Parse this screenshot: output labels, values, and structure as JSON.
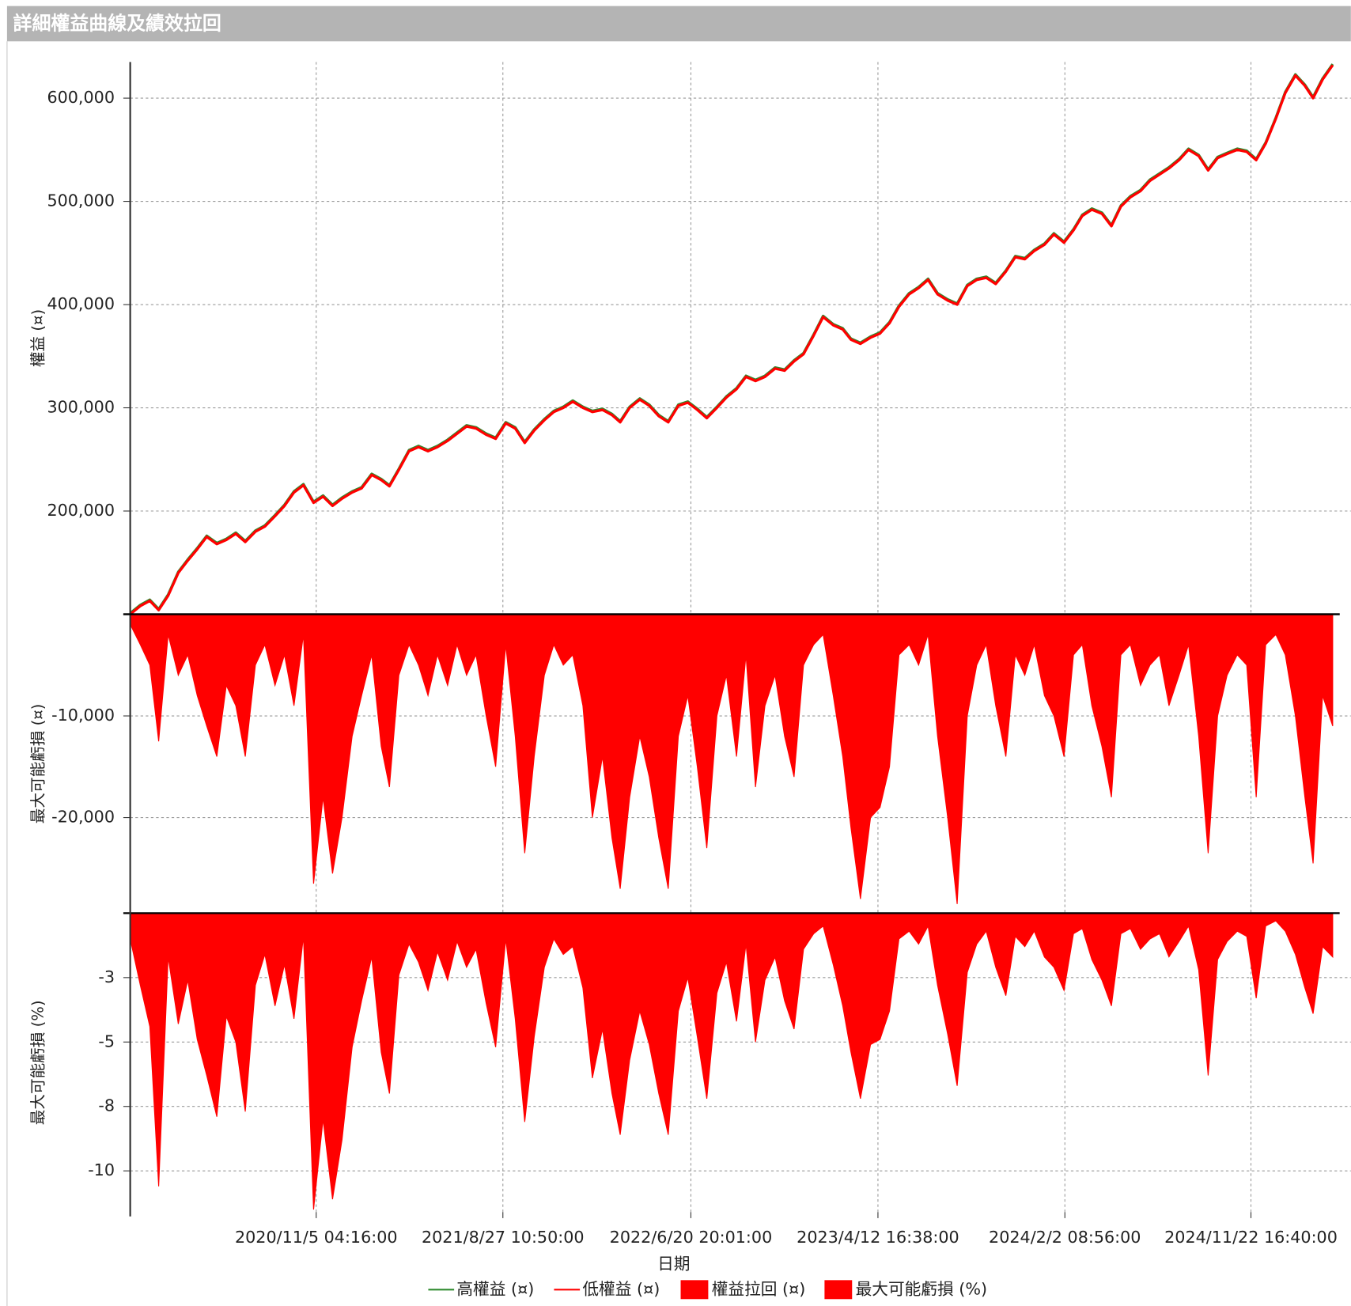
{
  "chart_data": {
    "type": "panels",
    "title": "詳細權益曲線及績效拉回",
    "xlabel": "日期",
    "xlim": [
      "2020/1/16",
      "2025/4/12"
    ],
    "xticks": [
      "2020/11/5 04:16:00",
      "2021/8/27 10:50:00",
      "2022/6/20 20:01:00",
      "2023/4/12 16:38:00",
      "2024/2/2 08:56:00",
      "2024/11/22 16:40:00"
    ],
    "x": [
      "2020/1/16",
      "2020/2/1",
      "2020/2/16",
      "2020/3/1",
      "2020/3/16",
      "2020/4/1",
      "2020/4/16",
      "2020/5/1",
      "2020/5/16",
      "2020/6/1",
      "2020/6/16",
      "2020/7/1",
      "2020/7/16",
      "2020/8/1",
      "2020/8/16",
      "2020/9/1",
      "2020/9/16",
      "2020/10/1",
      "2020/10/16",
      "2020/11/1",
      "2020/11/16",
      "2020/12/1",
      "2020/12/16",
      "2021/1/1",
      "2021/1/16",
      "2021/2/1",
      "2021/2/16",
      "2021/3/1",
      "2021/3/16",
      "2021/4/1",
      "2021/4/16",
      "2021/5/1",
      "2021/5/16",
      "2021/6/1",
      "2021/6/16",
      "2021/7/1",
      "2021/7/16",
      "2021/8/1",
      "2021/8/16",
      "2021/9/1",
      "2021/9/16",
      "2021/10/1",
      "2021/10/16",
      "2021/11/1",
      "2021/11/16",
      "2021/12/1",
      "2021/12/16",
      "2022/1/1",
      "2022/1/16",
      "2022/2/1",
      "2022/2/16",
      "2022/3/1",
      "2022/3/16",
      "2022/4/1",
      "2022/4/16",
      "2022/5/1",
      "2022/5/16",
      "2022/6/1",
      "2022/6/16",
      "2022/7/1",
      "2022/7/16",
      "2022/8/1",
      "2022/8/16",
      "2022/9/1",
      "2022/9/16",
      "2022/10/1",
      "2022/10/16",
      "2022/11/1",
      "2022/11/16",
      "2022/12/1",
      "2022/12/16",
      "2023/1/1",
      "2023/1/16",
      "2023/2/1",
      "2023/2/16",
      "2023/3/1",
      "2023/3/16",
      "2023/4/1",
      "2023/4/16",
      "2023/5/1",
      "2023/5/16",
      "2023/6/1",
      "2023/6/16",
      "2023/7/1",
      "2023/7/16",
      "2023/8/1",
      "2023/8/16",
      "2023/9/1",
      "2023/9/16",
      "2023/10/1",
      "2023/10/16",
      "2023/11/1",
      "2023/11/16",
      "2023/12/1",
      "2023/12/16",
      "2024/1/1",
      "2024/1/16",
      "2024/2/1",
      "2024/2/16",
      "2024/3/1",
      "2024/3/16",
      "2024/4/1",
      "2024/4/16",
      "2024/5/1",
      "2024/5/16",
      "2024/6/1",
      "2024/6/16",
      "2024/7/1",
      "2024/7/16",
      "2024/8/1",
      "2024/8/16",
      "2024/9/1",
      "2024/9/16",
      "2024/10/1",
      "2024/10/16",
      "2024/11/1",
      "2024/11/16",
      "2024/12/1",
      "2024/12/16",
      "2025/1/1",
      "2025/1/16",
      "2025/2/1",
      "2025/2/16",
      "2025/3/1",
      "2025/3/16",
      "2025/4/1"
    ],
    "panels": [
      {
        "type": "line",
        "ylabel": "權益 (¤)",
        "ylim": [
          100000,
          635000
        ],
        "yticks": [
          {
            "value": 200000,
            "label": "200,000"
          },
          {
            "value": 300000,
            "label": "300,000"
          },
          {
            "value": 400000,
            "label": "400,000"
          },
          {
            "value": 500000,
            "label": "500,000"
          },
          {
            "value": 600000,
            "label": "600,000"
          }
        ],
        "series": [
          {
            "name": "高權益 (¤)",
            "color": "#2e8b2e",
            "values": [
              101000,
              109000,
              114000,
              105000,
              119000,
              141000,
              153000,
              164000,
              176000,
              169000,
              173000,
              179000,
              171000,
              181000,
              186000,
              196000,
              206000,
              219000,
              226000,
              209000,
              215000,
              206000,
              213000,
              219000,
              223000,
              236000,
              231000,
              225000,
              241000,
              259000,
              263000,
              259000,
              263000,
              269000,
              276000,
              283000,
              281000,
              275000,
              271000,
              286000,
              281000,
              267000,
              279000,
              289000,
              297000,
              301000,
              307000,
              301000,
              297000,
              299000,
              294000,
              287000,
              301000,
              309000,
              303000,
              293000,
              287000,
              303000,
              306000,
              299000,
              291000,
              301000,
              311000,
              319000,
              331000,
              327000,
              331000,
              339000,
              337000,
              346000,
              353000,
              371000,
              389000,
              381000,
              377000,
              367000,
              363000,
              369000,
              373000,
              383000,
              399000,
              411000,
              417000,
              425000,
              411000,
              405000,
              401000,
              419000,
              425000,
              427000,
              421000,
              433000,
              447000,
              445000,
              453000,
              459000,
              469000,
              461000,
              473000,
              487000,
              493000,
              489000,
              477000,
              496000,
              505000,
              511000,
              521000,
              527000,
              533000,
              541000,
              551000,
              545000,
              531000,
              543000,
              547000,
              551000,
              549000,
              541000,
              557000,
              581000,
              606000,
              623000,
              613000,
              601000,
              619000,
              633000
            ]
          },
          {
            "name": "低權益 (¤)",
            "color": "#ff0000",
            "values": [
              100000,
              108000,
              113000,
              104000,
              118000,
              140000,
              152000,
              163000,
              175000,
              168000,
              172000,
              178000,
              170000,
              180000,
              185000,
              195000,
              205000,
              218000,
              225000,
              208000,
              214000,
              205000,
              212000,
              218000,
              222000,
              235000,
              230000,
              224000,
              240000,
              258000,
              262000,
              258000,
              262000,
              268000,
              275000,
              282000,
              280000,
              274000,
              270000,
              285000,
              280000,
              266000,
              278000,
              288000,
              296000,
              300000,
              306000,
              300000,
              296000,
              298000,
              293000,
              286000,
              300000,
              308000,
              302000,
              292000,
              286000,
              302000,
              305000,
              298000,
              290000,
              300000,
              310000,
              318000,
              330000,
              326000,
              330000,
              338000,
              336000,
              345000,
              352000,
              370000,
              388000,
              380000,
              376000,
              366000,
              362000,
              368000,
              372000,
              382000,
              398000,
              410000,
              416000,
              424000,
              410000,
              404000,
              400000,
              418000,
              424000,
              426000,
              420000,
              432000,
              446000,
              444000,
              452000,
              458000,
              468000,
              460000,
              472000,
              486000,
              492000,
              488000,
              476000,
              495000,
              504000,
              510000,
              520000,
              526000,
              532000,
              540000,
              550000,
              544000,
              530000,
              542000,
              546000,
              550000,
              548000,
              540000,
              556000,
              580000,
              605000,
              622000,
              612000,
              600000,
              618000,
              632000
            ]
          }
        ]
      },
      {
        "type": "area",
        "ylabel": "最大可能虧損 (¤)",
        "ylim": [
          -29400,
          0
        ],
        "yticks": [
          {
            "value": -10000,
            "label": "-10,000"
          },
          {
            "value": -20000,
            "label": "-20,000"
          }
        ],
        "series": [
          {
            "name": "權益拉回 (¤)",
            "color": "#ff0000",
            "values": [
              -1000,
              -3000,
              -5000,
              -12500,
              -2000,
              -6000,
              -4000,
              -8000,
              -11000,
              -14000,
              -7000,
              -9000,
              -14000,
              -5000,
              -3000,
              -7000,
              -4000,
              -9000,
              -2000,
              -26500,
              -18000,
              -25500,
              -20000,
              -12000,
              -8000,
              -4000,
              -13000,
              -17000,
              -6000,
              -3000,
              -5000,
              -8000,
              -4000,
              -7000,
              -3000,
              -6000,
              -4000,
              -10000,
              -15000,
              -3000,
              -12000,
              -23500,
              -14000,
              -6000,
              -3000,
              -5000,
              -4000,
              -9000,
              -20000,
              -14000,
              -22000,
              -27000,
              -18000,
              -12000,
              -16000,
              -22000,
              -27000,
              -12000,
              -8000,
              -15000,
              -23000,
              -10000,
              -6000,
              -14000,
              -4000,
              -17000,
              -9000,
              -6000,
              -12000,
              -16000,
              -5000,
              -3000,
              -2000,
              -8000,
              -14000,
              -21000,
              -28000,
              -20000,
              -19000,
              -15000,
              -4000,
              -3000,
              -5000,
              -2000,
              -12000,
              -20000,
              -28500,
              -10000,
              -5000,
              -3000,
              -9000,
              -14000,
              -4000,
              -6000,
              -3000,
              -8000,
              -10000,
              -14000,
              -4000,
              -3000,
              -9000,
              -13000,
              -18000,
              -4000,
              -3000,
              -7000,
              -5000,
              -4000,
              -9000,
              -6000,
              -3000,
              -12000,
              -23500,
              -10000,
              -6000,
              -4000,
              -5000,
              -18000,
              -3000,
              -2000,
              -4000,
              -10000,
              -18000,
              -24500,
              -8000,
              -11000
            ]
          }
        ]
      },
      {
        "type": "area",
        "ylabel": "最大可能虧損 (%)",
        "ylim": [
          -11.6,
          0
        ],
        "yticks": [
          {
            "value": -2.5,
            "label": "-3"
          },
          -5,
          {
            "value": -7.5,
            "label": "-8"
          },
          -10
        ],
        "series": [
          {
            "name": "最大可能虧損 (%)",
            "color": "#ff0000",
            "values": [
              -1.0,
              -2.8,
              -4.4,
              -10.6,
              -1.7,
              -4.3,
              -2.6,
              -4.9,
              -6.3,
              -7.9,
              -4.0,
              -5.0,
              -7.7,
              -2.8,
              -1.6,
              -3.6,
              -2.0,
              -4.1,
              -0.9,
              -11.5,
              -8.0,
              -11.1,
              -8.8,
              -5.2,
              -3.4,
              -1.7,
              -5.4,
              -7.0,
              -2.4,
              -1.2,
              -1.9,
              -3.0,
              -1.5,
              -2.6,
              -1.1,
              -2.1,
              -1.4,
              -3.5,
              -5.2,
              -1.0,
              -4.1,
              -8.1,
              -4.8,
              -2.1,
              -1.0,
              -1.6,
              -1.3,
              -2.9,
              -6.4,
              -4.5,
              -7.0,
              -8.6,
              -5.7,
              -3.8,
              -5.1,
              -7.0,
              -8.6,
              -3.8,
              -2.5,
              -4.8,
              -7.2,
              -3.1,
              -1.9,
              -4.2,
              -1.2,
              -5.0,
              -2.6,
              -1.7,
              -3.4,
              -4.5,
              -1.4,
              -0.8,
              -0.5,
              -2.0,
              -3.6,
              -5.4,
              -7.2,
              -5.1,
              -4.9,
              -3.8,
              -1.0,
              -0.7,
              -1.2,
              -0.5,
              -2.8,
              -4.7,
              -6.7,
              -2.3,
              -1.2,
              -0.7,
              -2.1,
              -3.2,
              -0.9,
              -1.3,
              -0.7,
              -1.7,
              -2.1,
              -3.0,
              -0.8,
              -0.6,
              -1.8,
              -2.6,
              -3.6,
              -0.8,
              -0.6,
              -1.4,
              -1.0,
              -0.8,
              -1.7,
              -1.1,
              -0.5,
              -2.2,
              -6.3,
              -1.8,
              -1.1,
              -0.7,
              -0.9,
              -3.3,
              -0.5,
              -0.3,
              -0.7,
              -1.6,
              -2.9,
              -3.9,
              -1.3,
              -1.7
            ]
          }
        ]
      }
    ]
  }
}
